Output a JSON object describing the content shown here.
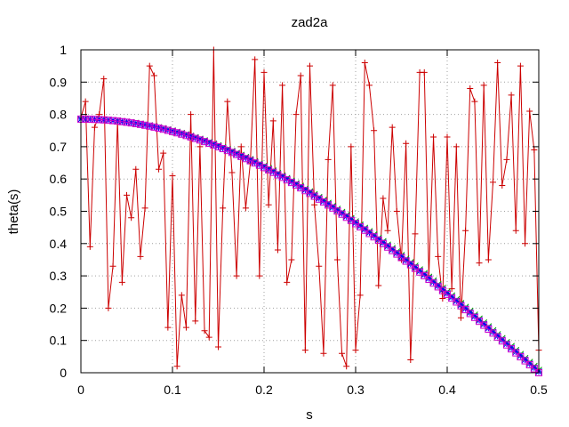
{
  "chart_data": {
    "type": "line",
    "title": "zad2a",
    "xlabel": "s",
    "ylabel": "theta(s)",
    "xlim": [
      0,
      0.5
    ],
    "ylim": [
      0,
      1
    ],
    "xticks": [
      "0",
      "0.1",
      "0.2",
      "0.3",
      "0.4",
      "0.5"
    ],
    "yticks": [
      "0",
      "0.1",
      "0.2",
      "0.3",
      "0.4",
      "0.5",
      "0.6",
      "0.7",
      "0.8",
      "0.9",
      "1"
    ],
    "grid": true,
    "colors": {
      "red": "#cc0000",
      "green": "#00a000",
      "blue": "#0000ff",
      "magenta": "#cc00cc",
      "grid": "#a0a0a0"
    },
    "series": [
      {
        "color": "#cc0000",
        "marker": "plus",
        "points": [
          [
            0,
            0.79
          ],
          [
            0.005,
            0.84
          ],
          [
            0.01,
            0.39
          ],
          [
            0.015,
            0.76
          ],
          [
            0.02,
            0.8
          ],
          [
            0.025,
            0.91
          ],
          [
            0.03,
            0.2
          ],
          [
            0.035,
            0.33
          ],
          [
            0.04,
            0.78
          ],
          [
            0.045,
            0.28
          ],
          [
            0.05,
            0.55
          ],
          [
            0.055,
            0.48
          ],
          [
            0.06,
            0.63
          ],
          [
            0.065,
            0.36
          ],
          [
            0.07,
            0.51
          ],
          [
            0.075,
            0.95
          ],
          [
            0.08,
            0.92
          ],
          [
            0.085,
            0.63
          ],
          [
            0.09,
            0.68
          ],
          [
            0.095,
            0.14
          ],
          [
            0.1,
            0.61
          ],
          [
            0.105,
            0.02
          ],
          [
            0.11,
            0.24
          ],
          [
            0.115,
            0.14
          ],
          [
            0.12,
            0.8
          ],
          [
            0.125,
            0.16
          ],
          [
            0.13,
            0.7
          ],
          [
            0.135,
            0.13
          ],
          [
            0.14,
            0.11
          ],
          [
            0.145,
            1.0
          ],
          [
            0.15,
            0.08
          ],
          [
            0.155,
            0.51
          ],
          [
            0.16,
            0.84
          ],
          [
            0.165,
            0.62
          ],
          [
            0.17,
            0.3
          ],
          [
            0.175,
            0.7
          ],
          [
            0.18,
            0.51
          ],
          [
            0.185,
            0.65
          ],
          [
            0.19,
            0.97
          ],
          [
            0.195,
            0.3
          ],
          [
            0.2,
            0.93
          ],
          [
            0.205,
            0.52
          ],
          [
            0.21,
            0.78
          ],
          [
            0.215,
            0.38
          ],
          [
            0.22,
            0.89
          ],
          [
            0.225,
            0.28
          ],
          [
            0.23,
            0.35
          ],
          [
            0.235,
            0.8
          ],
          [
            0.24,
            0.92
          ],
          [
            0.245,
            0.07
          ],
          [
            0.25,
            0.95
          ],
          [
            0.255,
            0.52
          ],
          [
            0.26,
            0.33
          ],
          [
            0.265,
            0.06
          ],
          [
            0.27,
            0.66
          ],
          [
            0.275,
            0.89
          ],
          [
            0.28,
            0.35
          ],
          [
            0.285,
            0.06
          ],
          [
            0.29,
            0.02
          ],
          [
            0.295,
            0.7
          ],
          [
            0.3,
            0.07
          ],
          [
            0.305,
            0.24
          ],
          [
            0.31,
            0.96
          ],
          [
            0.315,
            0.89
          ],
          [
            0.32,
            0.75
          ],
          [
            0.325,
            0.27
          ],
          [
            0.33,
            0.54
          ],
          [
            0.335,
            0.44
          ],
          [
            0.34,
            0.76
          ],
          [
            0.345,
            0.5
          ],
          [
            0.35,
            0.35
          ],
          [
            0.355,
            0.71
          ],
          [
            0.36,
            0.04
          ],
          [
            0.365,
            0.43
          ],
          [
            0.37,
            0.93
          ],
          [
            0.375,
            0.93
          ],
          [
            0.38,
            0.3
          ],
          [
            0.385,
            0.73
          ],
          [
            0.39,
            0.36
          ],
          [
            0.395,
            0.23
          ],
          [
            0.4,
            0.73
          ],
          [
            0.405,
            0.26
          ],
          [
            0.41,
            0.7
          ],
          [
            0.415,
            0.17
          ],
          [
            0.42,
            0.44
          ],
          [
            0.425,
            0.88
          ],
          [
            0.43,
            0.84
          ],
          [
            0.435,
            0.34
          ],
          [
            0.44,
            0.89
          ],
          [
            0.445,
            0.35
          ],
          [
            0.45,
            0.59
          ],
          [
            0.455,
            0.96
          ],
          [
            0.46,
            0.58
          ],
          [
            0.465,
            0.66
          ],
          [
            0.47,
            0.86
          ],
          [
            0.475,
            0.44
          ],
          [
            0.48,
            0.95
          ],
          [
            0.485,
            0.4
          ],
          [
            0.49,
            0.81
          ],
          [
            0.495,
            0.69
          ],
          [
            0.5,
            0.07
          ]
        ]
      },
      {
        "color": "#00a000",
        "marker": "x",
        "function": "0.7854*cos(pi*s)",
        "npoints": 100,
        "dy": 0.008
      },
      {
        "color": "#0000ff",
        "marker": "star",
        "function": "0.7854*cos(pi*s)",
        "npoints": 100,
        "dy": 0.003
      },
      {
        "color": "#cc00cc",
        "marker": "square",
        "function": "0.7854*cos(pi*s)",
        "npoints": 100,
        "dy": 0.0
      }
    ]
  }
}
